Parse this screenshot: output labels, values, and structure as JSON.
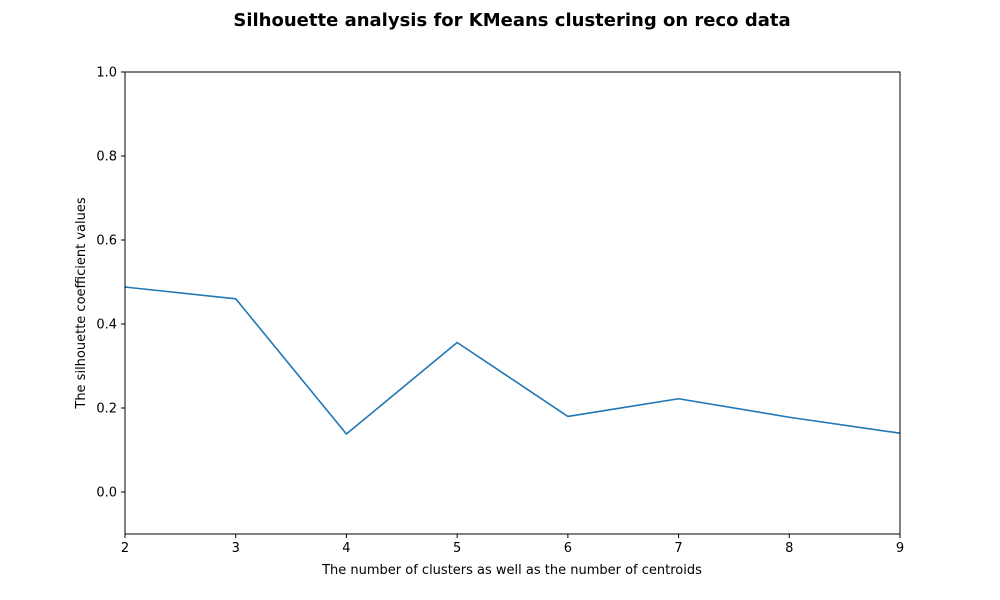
{
  "chart_data": {
    "type": "line",
    "title": "Silhouette analysis for KMeans clustering on reco data",
    "xlabel": "The number of clusters as well as the number of centroids",
    "ylabel": "The silhouette coefficient values",
    "x": [
      2,
      3,
      4,
      5,
      6,
      7,
      8,
      9
    ],
    "series": [
      {
        "values": [
          0.488,
          0.46,
          0.138,
          0.356,
          0.18,
          0.222,
          0.178,
          0.14
        ]
      }
    ],
    "xlim": [
      2,
      9
    ],
    "ylim": [
      -0.1,
      1.0
    ],
    "xticks": [
      "2",
      "3",
      "4",
      "5",
      "6",
      "7",
      "8",
      "9"
    ],
    "yticks": [
      "0.0",
      "0.2",
      "0.4",
      "0.6",
      "0.8",
      "1.0"
    ],
    "grid": false,
    "line_color": "#1f77b4"
  }
}
